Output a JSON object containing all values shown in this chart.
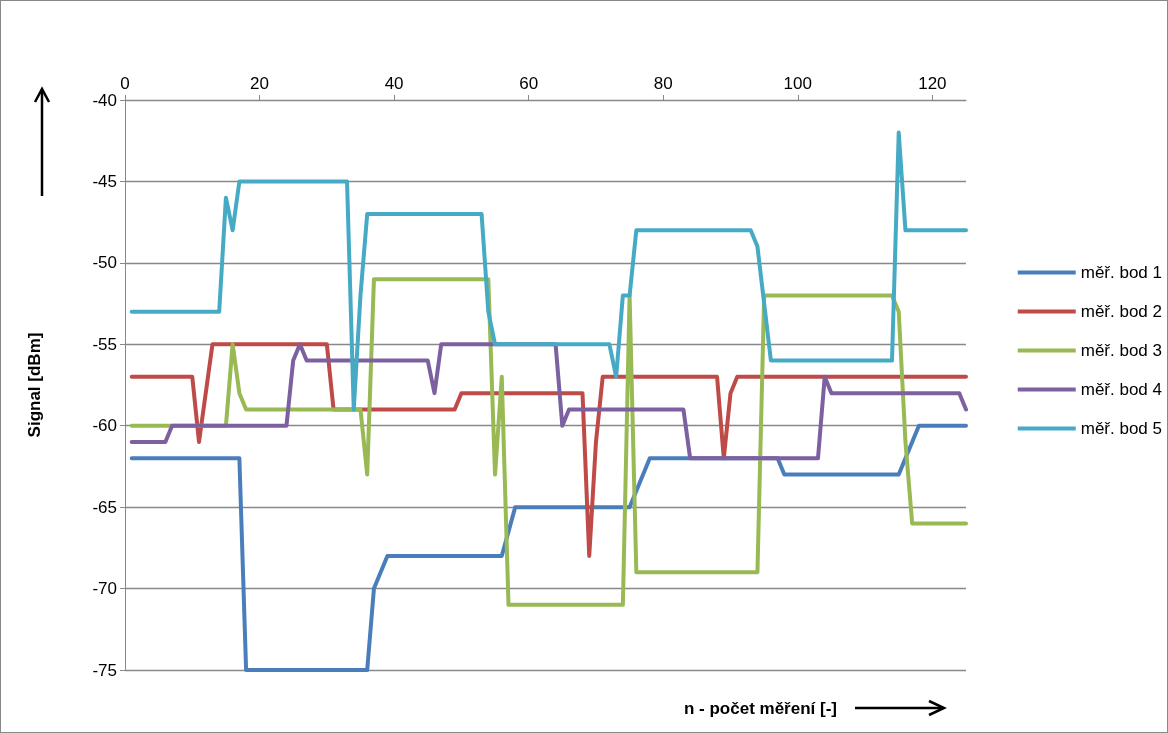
{
  "chart_data": {
    "type": "line",
    "xlabel": "n - počet měření [-]",
    "ylabel": "Signal [dBm]",
    "xlim": [
      0,
      125
    ],
    "xticks": [
      0,
      20,
      40,
      60,
      80,
      100,
      120
    ],
    "ylim": [
      -75,
      -40
    ],
    "yticks": [
      -75,
      -70,
      -65,
      -60,
      -55,
      -50,
      -45,
      -40
    ],
    "grid": "y",
    "legend": "right",
    "marker": "none",
    "line_style": "solid",
    "series": [
      {
        "name": "měř. bod 1",
        "color": "#4a7ebb",
        "x": [
          1,
          17,
          18,
          36,
          37,
          39,
          56,
          58,
          75,
          78,
          97,
          98,
          115,
          118,
          125
        ],
        "values": [
          -62,
          -62,
          -75,
          -75,
          -70,
          -68,
          -68,
          -65,
          -65,
          -62,
          -62,
          -63,
          -63,
          -60,
          -60
        ]
      },
      {
        "name": "měř. bod 2",
        "color": "#be4b48",
        "x": [
          1,
          10,
          11,
          13,
          30,
          31,
          49,
          50,
          68,
          69,
          70,
          71,
          88,
          89,
          90,
          91,
          125
        ],
        "values": [
          -57,
          -57,
          -61,
          -55,
          -55,
          -59,
          -59,
          -58,
          -58,
          -68,
          -61,
          -57,
          -57,
          -62,
          -58,
          -57,
          -57
        ]
      },
      {
        "name": "měř. bod 3",
        "color": "#98b954",
        "x": [
          1,
          15,
          16,
          17,
          18,
          35,
          36,
          37,
          54,
          55,
          56,
          57,
          74,
          75,
          76,
          94,
          95,
          114,
          115,
          116,
          117,
          125
        ],
        "values": [
          -60,
          -60,
          -55,
          -58,
          -59,
          -59,
          -63,
          -51,
          -51,
          -63,
          -57,
          -71,
          -71,
          -52,
          -69,
          -69,
          -52,
          -52,
          -53,
          -61,
          -66,
          -66
        ]
      },
      {
        "name": "měř. bod 4",
        "color": "#7d60a0",
        "x": [
          1,
          6,
          7,
          24,
          25,
          26,
          27,
          45,
          46,
          47,
          64,
          65,
          66,
          83,
          84,
          103,
          104,
          105,
          124,
          125
        ],
        "values": [
          -61,
          -61,
          -60,
          -60,
          -56,
          -55,
          -56,
          -56,
          -58,
          -55,
          -55,
          -60,
          -59,
          -59,
          -62,
          -62,
          -57,
          -58,
          -58,
          -59
        ]
      },
      {
        "name": "měř. bod 5",
        "color": "#46aac5",
        "x": [
          1,
          14,
          15,
          16,
          17,
          33,
          34,
          35,
          36,
          53,
          54,
          55,
          72,
          73,
          74,
          75,
          76,
          93,
          94,
          96,
          114,
          115,
          116,
          125
        ],
        "values": [
          -53,
          -53,
          -46,
          -48,
          -45,
          -45,
          -59,
          -52,
          -47,
          -47,
          -53,
          -55,
          -55,
          -57,
          -52,
          -52,
          -48,
          -48,
          -49,
          -56,
          -56,
          -42,
          -48,
          -48
        ]
      }
    ]
  }
}
